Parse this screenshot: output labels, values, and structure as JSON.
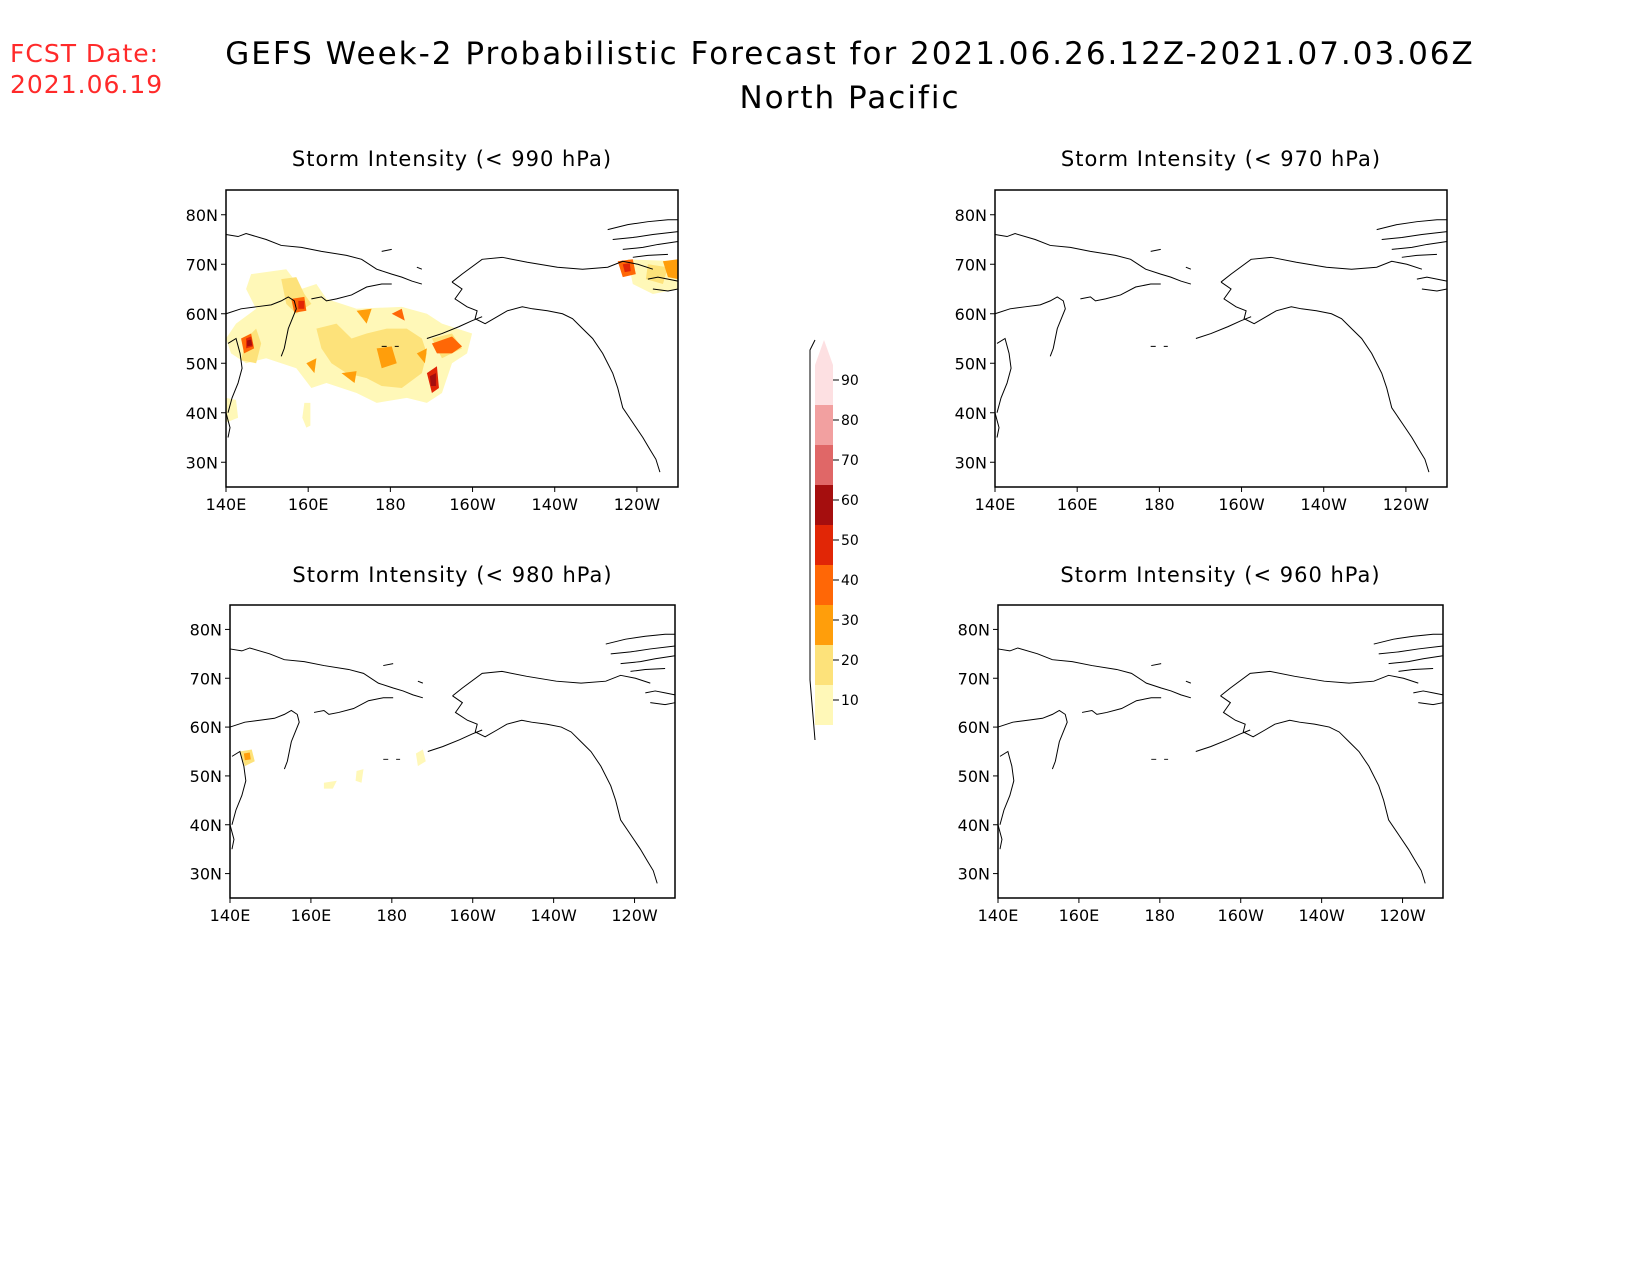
{
  "header": {
    "fcst_date_label": "FCST Date:",
    "fcst_date_value": "2021.06.19",
    "title_line1": "GEFS Week-2 Probabilistic Forecast for 2021.06.26.12Z-2021.07.03.06Z",
    "title_line2": "North Pacific"
  },
  "axes": {
    "lon_ticks": [
      "140E",
      "160E",
      "180",
      "160W",
      "140W",
      "120W"
    ],
    "lat_ticks": [
      "80N",
      "70N",
      "60N",
      "50N",
      "40N",
      "30N"
    ]
  },
  "panels": [
    {
      "id": "p990",
      "title": "Storm Intensity (< 990 hPa)"
    },
    {
      "id": "p970",
      "title": "Storm Intensity (< 970 hPa)"
    },
    {
      "id": "p980",
      "title": "Storm Intensity (< 980 hPa)"
    },
    {
      "id": "p960",
      "title": "Storm Intensity (< 960 hPa)"
    }
  ],
  "colorbar": {
    "labels": [
      "90",
      "80",
      "70",
      "60",
      "50",
      "40",
      "30",
      "20",
      "10"
    ],
    "colors": [
      "#fde0e2",
      "#f2a0a0",
      "#e06767",
      "#a50e0e",
      "#e12606",
      "#ff6706",
      "#ff9e0b",
      "#fde27a",
      "#fff8b8"
    ]
  }
}
